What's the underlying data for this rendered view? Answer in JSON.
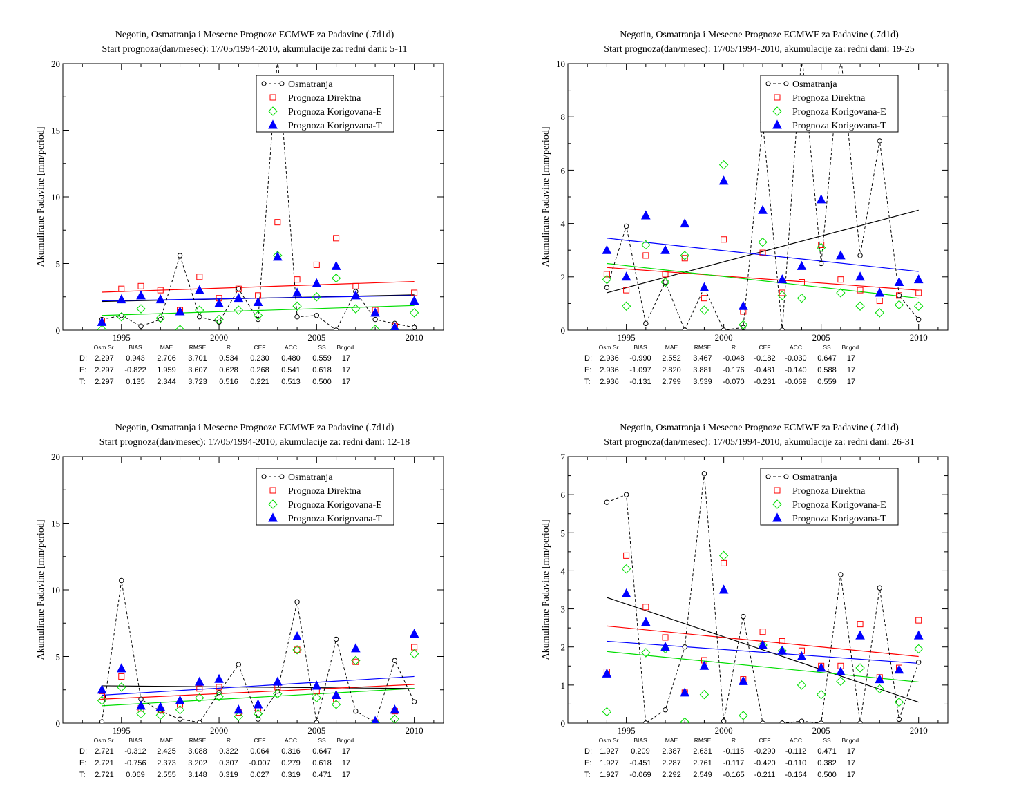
{
  "legend": [
    "Osmatranja",
    "Prognoza Direktna",
    "Prognoza Korigovana-E",
    "Prognoza Korigovana-T"
  ],
  "ylabel": "Akumulirane Padavine [mm/period]",
  "stats_header": [
    "Osm.Sr.",
    "BIAS",
    "MAE",
    "RMSE",
    "R",
    "CEF",
    "ACC",
    "SS",
    "Br.god."
  ],
  "colors": {
    "obs": "#000000",
    "direct": "#ff0000",
    "corrE": "#00dd00",
    "corrT": "#0000ff"
  },
  "chart_data": [
    {
      "type": "scatter",
      "title": "Negotin, Osmatranja i Mesecne Prognoze ECMWF za Padavine (.7d1d)",
      "subtitle": "Start prognoza(dan/mesec): 17/05/1994-2010, akumulacije za: redni dani: 5-11",
      "ylabel": "Akumulirane Padavine [mm/period]",
      "xlim": [
        1992,
        2011.5
      ],
      "ylim": [
        0,
        20
      ],
      "xticks": [
        1995,
        2000,
        2005,
        2010
      ],
      "yticks": [
        0,
        5,
        10,
        15,
        20
      ],
      "x": [
        1994,
        1995,
        1996,
        1997,
        1998,
        1999,
        2000,
        2001,
        2002,
        2003,
        2004,
        2005,
        2006,
        2007,
        2008,
        2009,
        2010
      ],
      "series": [
        {
          "name": "Osmatranja",
          "values": [
            0.8,
            1.1,
            0.3,
            0.8,
            5.6,
            1.0,
            0.6,
            3.1,
            0.8,
            20.5,
            1.0,
            1.1,
            0.0,
            2.9,
            0.8,
            0.5,
            0.2
          ]
        },
        {
          "name": "Prognoza Direktna",
          "values": [
            0.7,
            3.1,
            3.3,
            3.0,
            1.5,
            4.0,
            2.4,
            3.1,
            2.6,
            8.1,
            3.8,
            4.9,
            6.9,
            3.3,
            1.5,
            0.3,
            2.8
          ]
        },
        {
          "name": "Prognoza Korigovana-E",
          "values": [
            0.05,
            1.0,
            1.6,
            0.9,
            0.05,
            1.5,
            0.8,
            1.5,
            1.1,
            5.6,
            1.8,
            2.5,
            3.9,
            1.6,
            0.05,
            0.05,
            1.3
          ]
        },
        {
          "name": "Prognoza Korigovana-T",
          "values": [
            0.6,
            2.3,
            2.6,
            2.3,
            1.4,
            3.0,
            2.0,
            2.4,
            2.1,
            5.5,
            2.8,
            3.5,
            4.8,
            2.6,
            1.3,
            0.2,
            2.2
          ]
        }
      ],
      "trends": [
        {
          "series": "Osmatranja",
          "start": 2.15,
          "end": 2.65
        },
        {
          "series": "Prognoza Direktna",
          "start": 2.85,
          "end": 3.65
        },
        {
          "series": "Prognoza Korigovana-E",
          "start": 1.1,
          "end": 1.85
        },
        {
          "series": "Prognoza Korigovana-T",
          "start": 2.2,
          "end": 2.6
        }
      ],
      "stats": [
        {
          "label": "D:",
          "values": [
            "2.297",
            "0.943",
            "2.706",
            "3.701",
            "0.534",
            "0.230",
            "0.480",
            "0.559",
            "17"
          ]
        },
        {
          "label": "E:",
          "values": [
            "2.297",
            "-0.822",
            "1.959",
            "3.607",
            "0.628",
            "0.268",
            "0.541",
            "0.618",
            "17"
          ]
        },
        {
          "label": "T:",
          "values": [
            "2.297",
            "0.135",
            "2.344",
            "3.723",
            "0.516",
            "0.221",
            "0.513",
            "0.500",
            "17"
          ]
        }
      ]
    },
    {
      "type": "scatter",
      "title": "Negotin, Osmatranja i Mesecne Prognoze ECMWF za Padavine (.7d1d)",
      "subtitle": "Start prognoza(dan/mesec): 17/05/1994-2010, akumulacije za: redni dani: 19-25",
      "ylabel": "Akumulirane Padavine [mm/period]",
      "xlim": [
        1992,
        2011.5
      ],
      "ylim": [
        0,
        10
      ],
      "xticks": [
        1995,
        2000,
        2005,
        2010
      ],
      "yticks": [
        0,
        2,
        4,
        6,
        8,
        10
      ],
      "x": [
        1994,
        1995,
        1996,
        1997,
        1998,
        1999,
        2000,
        2001,
        2002,
        2003,
        2004,
        2005,
        2006,
        2007,
        2008,
        2009,
        2010
      ],
      "series": [
        {
          "name": "Osmatranja",
          "values": [
            1.6,
            3.9,
            0.25,
            1.8,
            0.0,
            1.6,
            0.0,
            0.1,
            7.8,
            0.0,
            10.4,
            2.5,
            10.4,
            2.8,
            7.1,
            1.3,
            0.4
          ]
        },
        {
          "name": "Prognoza Direktna",
          "values": [
            2.1,
            1.5,
            2.8,
            2.1,
            2.7,
            1.2,
            3.4,
            0.7,
            2.9,
            1.4,
            1.8,
            3.2,
            1.9,
            1.5,
            1.1,
            1.3,
            1.4
          ]
        },
        {
          "name": "Prognoza Korigovana-E",
          "values": [
            1.9,
            0.9,
            3.2,
            1.8,
            2.8,
            0.75,
            6.2,
            0.2,
            3.3,
            1.3,
            1.2,
            3.1,
            1.4,
            0.9,
            0.65,
            0.95,
            0.9
          ]
        },
        {
          "name": "Prognoza Korigovana-T",
          "values": [
            3.0,
            2.0,
            4.3,
            3.0,
            4.0,
            1.6,
            5.6,
            0.9,
            4.5,
            1.9,
            2.4,
            4.9,
            2.8,
            2.0,
            1.4,
            1.8,
            1.9
          ]
        }
      ],
      "trends": [
        {
          "series": "Osmatranja",
          "start": 1.4,
          "end": 4.5
        },
        {
          "series": "Prognoza Direktna",
          "start": 2.35,
          "end": 1.5
        },
        {
          "series": "Prognoza Korigovana-E",
          "start": 2.5,
          "end": 1.2
        },
        {
          "series": "Prognoza Korigovana-T",
          "start": 3.45,
          "end": 2.2
        }
      ],
      "stats": [
        {
          "label": "D:",
          "values": [
            "2.936",
            "-0.990",
            "2.552",
            "3.467",
            "-0.048",
            "-0.182",
            "-0.030",
            "0.647",
            "17"
          ]
        },
        {
          "label": "E:",
          "values": [
            "2.936",
            "-1.097",
            "2.820",
            "3.881",
            "-0.176",
            "-0.481",
            "-0.140",
            "0.588",
            "17"
          ]
        },
        {
          "label": "T:",
          "values": [
            "2.936",
            "-0.131",
            "2.799",
            "3.539",
            "-0.070",
            "-0.231",
            "-0.069",
            "0.559",
            "17"
          ]
        }
      ]
    },
    {
      "type": "scatter",
      "title": "Negotin, Osmatranja i Mesecne Prognoze ECMWF za Padavine (.7d1d)",
      "subtitle": "Start prognoza(dan/mesec): 17/05/1994-2010, akumulacije za: redni dani: 12-18",
      "ylabel": "Akumulirane Padavine [mm/period]",
      "xlim": [
        1992,
        2011.5
      ],
      "ylim": [
        0,
        20
      ],
      "xticks": [
        1995,
        2000,
        2005,
        2010
      ],
      "yticks": [
        0,
        5,
        10,
        15,
        20
      ],
      "x": [
        1994,
        1995,
        1996,
        1997,
        1998,
        1999,
        2000,
        2001,
        2002,
        2003,
        2004,
        2005,
        2006,
        2007,
        2008,
        2009,
        2010
      ],
      "series": [
        {
          "name": "Osmatranja",
          "values": [
            0.1,
            10.7,
            1.8,
            0.9,
            0.3,
            0.05,
            2.3,
            4.4,
            0.3,
            2.4,
            9.1,
            0.05,
            6.3,
            0.9,
            0.05,
            4.7,
            1.6
          ]
        },
        {
          "name": "Prognoza Direktna",
          "values": [
            2.0,
            3.5,
            1.1,
            1.0,
            1.4,
            2.6,
            2.7,
            0.8,
            1.1,
            2.7,
            5.5,
            2.4,
            1.8,
            4.6,
            0.05,
            0.9,
            5.7
          ]
        },
        {
          "name": "Prognoza Korigovana-E",
          "values": [
            1.7,
            2.7,
            0.7,
            0.6,
            1.0,
            1.9,
            2.0,
            0.5,
            0.7,
            2.2,
            5.5,
            1.9,
            1.4,
            4.7,
            0.05,
            0.3,
            5.2
          ]
        },
        {
          "name": "Prognoza Korigovana-T",
          "values": [
            2.5,
            4.1,
            1.3,
            1.2,
            1.7,
            3.1,
            3.3,
            1.0,
            1.4,
            3.1,
            6.5,
            2.8,
            2.1,
            5.6,
            0.15,
            1.0,
            6.7
          ]
        }
      ],
      "trends": [
        {
          "series": "Osmatranja",
          "start": 2.8,
          "end": 2.6
        },
        {
          "series": "Prognoza Direktna",
          "start": 1.8,
          "end": 2.9
        },
        {
          "series": "Prognoza Korigovana-E",
          "start": 1.3,
          "end": 2.6
        },
        {
          "series": "Prognoza Korigovana-T",
          "start": 2.1,
          "end": 3.5
        }
      ],
      "stats": [
        {
          "label": "D:",
          "values": [
            "2.721",
            "-0.312",
            "2.425",
            "3.088",
            "0.322",
            "0.064",
            "0.316",
            "0.647",
            "17"
          ]
        },
        {
          "label": "E:",
          "values": [
            "2.721",
            "-0.756",
            "2.373",
            "3.202",
            "0.307",
            "-0.007",
            "0.279",
            "0.618",
            "17"
          ]
        },
        {
          "label": "T:",
          "values": [
            "2.721",
            "0.069",
            "2.555",
            "3.148",
            "0.319",
            "0.027",
            "0.319",
            "0.471",
            "17"
          ]
        }
      ]
    },
    {
      "type": "scatter",
      "title": "Negotin, Osmatranja i Mesecne Prognoze ECMWF za Padavine (.7d1d)",
      "subtitle": "Start prognoza(dan/mesec): 17/05/1994-2010, akumulacije za: redni dani: 26-31",
      "ylabel": "Akumulirane Padavine [mm/period]",
      "xlim": [
        1992,
        2011.5
      ],
      "ylim": [
        0,
        7
      ],
      "xticks": [
        1995,
        2000,
        2005,
        2010
      ],
      "yticks": [
        0,
        1,
        2,
        3,
        4,
        5,
        6,
        7
      ],
      "x": [
        1994,
        1995,
        1996,
        1997,
        1998,
        1999,
        2000,
        2001,
        2002,
        2003,
        2004,
        2005,
        2006,
        2007,
        2008,
        2009,
        2010
      ],
      "series": [
        {
          "name": "Osmatranja",
          "values": [
            5.8,
            6.0,
            0.0,
            0.35,
            2.0,
            6.55,
            0.05,
            2.8,
            0.0,
            0.0,
            0.05,
            0.0,
            3.9,
            0.0,
            3.55,
            0.1,
            1.6
          ]
        },
        {
          "name": "Prognoza Direktna",
          "values": [
            1.35,
            4.4,
            3.05,
            2.25,
            0.8,
            1.65,
            4.2,
            1.15,
            2.4,
            2.15,
            1.9,
            1.5,
            1.5,
            2.6,
            1.2,
            1.45,
            2.7
          ]
        },
        {
          "name": "Prognoza Korigovana-E",
          "values": [
            0.3,
            4.05,
            1.85,
            1.95,
            0.03,
            0.75,
            4.4,
            0.2,
            2.05,
            1.9,
            1.0,
            0.75,
            1.1,
            1.45,
            0.9,
            0.55,
            1.95
          ]
        },
        {
          "name": "Prognoza Korigovana-T",
          "values": [
            1.3,
            3.4,
            2.65,
            2.0,
            0.8,
            1.5,
            3.5,
            1.1,
            2.05,
            1.9,
            1.75,
            1.45,
            1.35,
            2.3,
            1.15,
            1.4,
            2.3
          ]
        }
      ],
      "trends": [
        {
          "series": "Osmatranja",
          "start": 3.3,
          "end": 0.55
        },
        {
          "series": "Prognoza Direktna",
          "start": 2.55,
          "end": 1.75
        },
        {
          "series": "Prognoza Korigovana-E",
          "start": 1.88,
          "end": 1.08
        },
        {
          "series": "Prognoza Korigovana-T",
          "start": 2.15,
          "end": 1.57
        }
      ],
      "stats": [
        {
          "label": "D:",
          "values": [
            "1.927",
            "0.209",
            "2.387",
            "2.631",
            "-0.115",
            "-0.290",
            "-0.112",
            "0.471",
            "17"
          ]
        },
        {
          "label": "E:",
          "values": [
            "1.927",
            "-0.451",
            "2.287",
            "2.761",
            "-0.117",
            "-0.420",
            "-0.110",
            "0.382",
            "17"
          ]
        },
        {
          "label": "T:",
          "values": [
            "1.927",
            "-0.069",
            "2.292",
            "2.549",
            "-0.165",
            "-0.211",
            "-0.164",
            "0.500",
            "17"
          ]
        }
      ]
    }
  ]
}
